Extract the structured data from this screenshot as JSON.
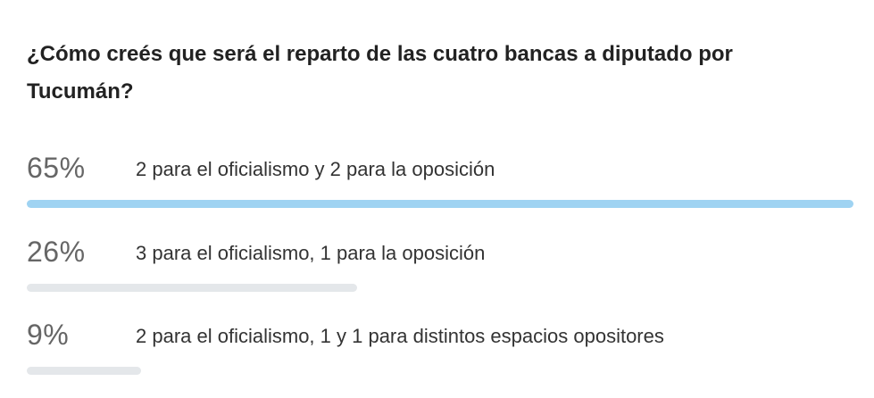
{
  "poll": {
    "question": "¿Cómo creés que será el reparto de las cuatro bancas a diputado por Tucumán?",
    "options": [
      {
        "percent_label": "65%",
        "percent": 65,
        "text": "2 para el oficialismo y 2 para la oposición",
        "highlighted": true
      },
      {
        "percent_label": "26%",
        "percent": 26,
        "text": "3 para el oficialismo, 1 para la oposición",
        "highlighted": false
      },
      {
        "percent_label": "9%",
        "percent": 9,
        "text": "2 para el oficialismo, 1 y 1 para distintos espacios opositores",
        "highlighted": false
      }
    ]
  },
  "colors": {
    "leader_bar": "#9fd3f2",
    "other_bar": "#e4e7ea",
    "percent_text": "#666666",
    "question_text": "#222222"
  }
}
